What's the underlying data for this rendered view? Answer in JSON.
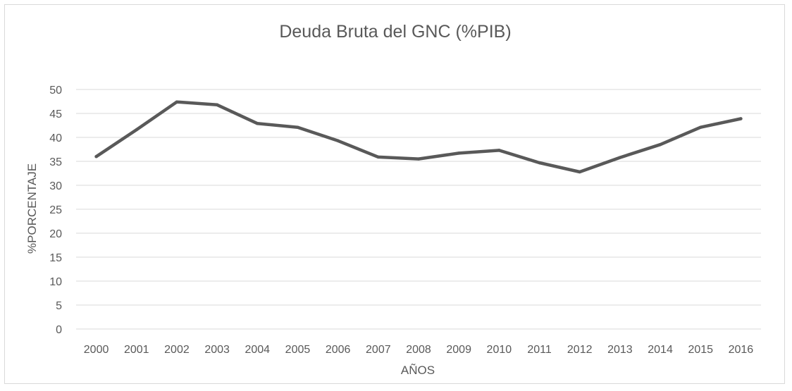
{
  "chart_data": {
    "type": "line",
    "title": "Deuda Bruta del GNC (%PIB)",
    "xlabel": "AÑOS",
    "ylabel": "%PORCENTAJE",
    "categories": [
      "2000",
      "2001",
      "2002",
      "2003",
      "2004",
      "2005",
      "2006",
      "2007",
      "2008",
      "2009",
      "2010",
      "2011",
      "2012",
      "2013",
      "2014",
      "2015",
      "2016"
    ],
    "series": [
      {
        "values": [
          36.0,
          41.6,
          47.4,
          46.8,
          42.9,
          42.1,
          39.3,
          35.9,
          35.5,
          36.7,
          37.3,
          34.7,
          32.8,
          35.8,
          38.5,
          42.1,
          43.9
        ],
        "color": "#595959"
      }
    ],
    "ylim": [
      0,
      50
    ],
    "yticks": [
      0,
      5,
      10,
      15,
      20,
      25,
      30,
      35,
      40,
      45,
      50
    ],
    "grid": true,
    "legend": "none"
  }
}
